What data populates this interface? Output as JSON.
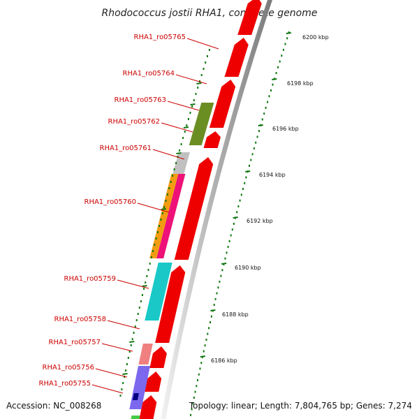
{
  "title": "Rhodococcus jostii RHA1, complete genome",
  "accession_text": "Accession: NC_008268",
  "topology_text": "Topology: linear; Length: 7,804,765 bp; Genes: 7,274",
  "colors": {
    "cds": "#ee0000",
    "label": "#cc0000",
    "tick": "#117711",
    "backbone": "#999999",
    "olive": "#6b8e23",
    "orange": "#f39c12",
    "pink": "#ee1177",
    "silver": "#c0c0c0",
    "cyan": "#1ac8c8",
    "salmon": "#f08080",
    "slate": "#7b68ee",
    "navy": "#000080",
    "green": "#44cc44"
  },
  "tick_labels": [
    "6200 kbp",
    "6198 kbp",
    "6196 kbp",
    "6194 kbp",
    "6192 kbp",
    "6190 kbp",
    "6188 kbp",
    "6186 kbp"
  ],
  "genes": [
    {
      "label": "RHA1_ro05765"
    },
    {
      "label": "RHA1_ro05764"
    },
    {
      "label": "RHA1_ro05763"
    },
    {
      "label": "RHA1_ro05762"
    },
    {
      "label": "RHA1_ro05761"
    },
    {
      "label": "RHA1_ro05760"
    },
    {
      "label": "RHA1_ro05759"
    },
    {
      "label": "RHA1_ro05758"
    },
    {
      "label": "RHA1_ro05757"
    },
    {
      "label": "RHA1_ro05756"
    },
    {
      "label": "RHA1_ro05755"
    }
  ]
}
